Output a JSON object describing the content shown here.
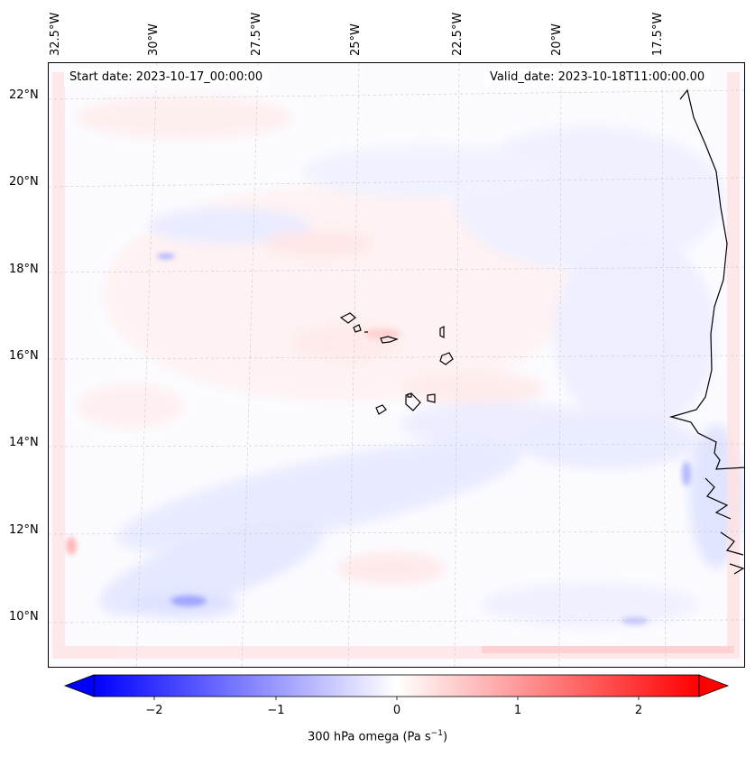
{
  "map": {
    "longitude_labels": [
      "32.5°W",
      "30°W",
      "27.5°W",
      "25°W",
      "22.5°W",
      "20°W",
      "17.5°W"
    ],
    "latitude_labels": [
      "22°N",
      "20°N",
      "18°N",
      "16°N",
      "14°N",
      "12°N",
      "10°N"
    ],
    "start_date": "Start date: 2023-10-17_00:00:00",
    "valid_date": "Valid_date: 2023-10-18T11:00:00.00"
  },
  "colorbar": {
    "ticks": [
      "−2",
      "−1",
      "0",
      "1",
      "2"
    ],
    "tick_values": [
      -2,
      -1,
      0,
      1,
      2
    ],
    "range": [
      -2.5,
      2.5
    ],
    "title_main": "300 hPa omega (Pa s",
    "title_sup": "−1",
    "title_end": ")",
    "color_negative": "#0000ff",
    "color_zero": "#ffffff",
    "color_positive": "#ff0000"
  }
}
